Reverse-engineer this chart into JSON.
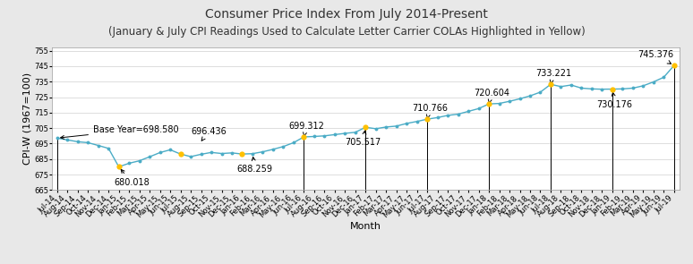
{
  "title": "Consumer Price Index From July 2014-Present",
  "subtitle": "(January & July CPI Readings Used to Calculate Letter Carrier COLAs Highlighted in Yellow)",
  "xlabel": "Month",
  "ylabel": "CPI-W (1967=100)",
  "ylim": [
    665,
    757
  ],
  "yticks": [
    665,
    675,
    685,
    695,
    705,
    715,
    725,
    735,
    745,
    755
  ],
  "background_color": "#e8e8e8",
  "plot_bg_color": "#ffffff",
  "line_color": "#4bacc6",
  "dot_color": "#4bacc6",
  "highlight_color": "#ffc000",
  "annotation_line_color": "#000000",
  "months": [
    "Jul-14",
    "Aug-14",
    "Sep-14",
    "Oct-14",
    "Nov-14",
    "Dec-14",
    "Jan-15",
    "Feb-15",
    "Mar-15",
    "Apr-15",
    "May-15",
    "Jun-15",
    "Jul-15",
    "Aug-15",
    "Sep-15",
    "Oct-15",
    "Nov-15",
    "Dec-15",
    "Jan-16",
    "Feb-16",
    "Mar-16",
    "Apr-16",
    "May-16",
    "Jun-16",
    "Jul-16",
    "Aug-16",
    "Sep-16",
    "Oct-16",
    "Nov-16",
    "Dec-16",
    "Jan-17",
    "Feb-17",
    "Mar-17",
    "Apr-17",
    "May-17",
    "Jun-17",
    "Jul-17",
    "Aug-17",
    "Sep-17",
    "Oct-17",
    "Nov-17",
    "Dec-17",
    "Jan-18",
    "Feb-18",
    "Mar-18",
    "Apr-18",
    "May-18",
    "Jun-18",
    "Jul-18",
    "Aug-18",
    "Sep-18",
    "Oct-18",
    "Nov-18",
    "Dec-18",
    "Jan-19",
    "Feb-19",
    "Mar-19",
    "Apr-19",
    "May-19",
    "Jun-19",
    "Jul-19"
  ],
  "values": [
    698.58,
    697.4,
    696.2,
    695.6,
    693.8,
    691.9,
    680.018,
    682.3,
    683.9,
    686.5,
    689.2,
    691.0,
    688.259,
    686.6,
    688.1,
    689.3,
    688.6,
    689.0,
    688.259,
    688.5,
    689.7,
    691.3,
    693.1,
    695.6,
    699.312,
    699.6,
    700.0,
    700.8,
    701.6,
    702.3,
    705.517,
    704.6,
    705.7,
    706.3,
    708.0,
    709.3,
    710.766,
    711.8,
    713.2,
    714.0,
    715.8,
    717.6,
    720.604,
    720.9,
    722.3,
    723.9,
    725.8,
    728.2,
    733.221,
    731.8,
    732.8,
    730.8,
    730.3,
    730.1,
    730.176,
    730.3,
    730.8,
    732.3,
    734.8,
    737.8,
    745.376
  ],
  "highlighted_indices": [
    6,
    12,
    18,
    24,
    30,
    36,
    42,
    48,
    54,
    60
  ],
  "vline_indices": [
    0,
    24,
    30,
    36,
    42,
    48,
    54,
    60
  ],
  "title_fontsize": 10,
  "subtitle_fontsize": 8.5,
  "axis_label_fontsize": 8,
  "tick_fontsize": 6,
  "annotation_fontsize": 7
}
